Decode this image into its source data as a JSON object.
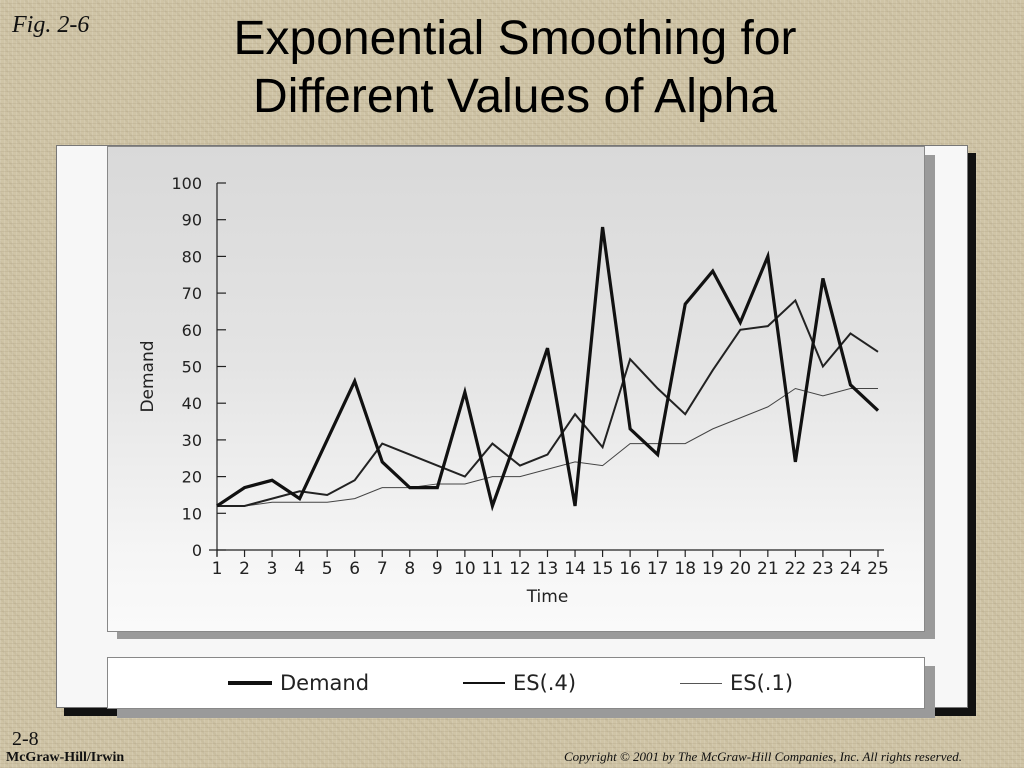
{
  "slide": {
    "fig_label": "Fig. 2-6",
    "title": "Exponential Smoothing for Different Values of Alpha",
    "slide_number": "2-8",
    "publisher": "McGraw-Hill/Irwin",
    "copyright": "Copyright © 2001 by The McGraw-Hill Companies, Inc.  All rights reserved."
  },
  "chart_data": {
    "type": "line",
    "xlabel": "Time",
    "ylabel": "Demand",
    "x": [
      1,
      2,
      3,
      4,
      5,
      6,
      7,
      8,
      9,
      10,
      11,
      12,
      13,
      14,
      15,
      16,
      17,
      18,
      19,
      20,
      21,
      22,
      23,
      24,
      25
    ],
    "ylim": [
      0,
      100
    ],
    "yticks": [
      0,
      10,
      20,
      30,
      40,
      50,
      60,
      70,
      80,
      90,
      100
    ],
    "grid": false,
    "legend_position": "bottom",
    "series": [
      {
        "name": "Demand",
        "style": "thick",
        "values": [
          12,
          17,
          19,
          14,
          30,
          46,
          24,
          17,
          17,
          43,
          12,
          33,
          55,
          12,
          88,
          33,
          26,
          67,
          76,
          62,
          80,
          24,
          74,
          45,
          38
        ]
      },
      {
        "name": "ES(.4)",
        "style": "medium",
        "values": [
          12,
          12,
          14,
          16,
          15,
          19,
          29,
          26,
          23,
          20,
          29,
          23,
          26,
          37,
          28,
          52,
          44,
          37,
          49,
          60,
          61,
          68,
          50,
          59,
          54
        ]
      },
      {
        "name": "ES(.1)",
        "style": "thin",
        "values": [
          12,
          12,
          13,
          13,
          13,
          14,
          17,
          17,
          18,
          18,
          20,
          20,
          22,
          24,
          23,
          29,
          29,
          29,
          33,
          36,
          39,
          44,
          42,
          44,
          44
        ]
      }
    ]
  }
}
